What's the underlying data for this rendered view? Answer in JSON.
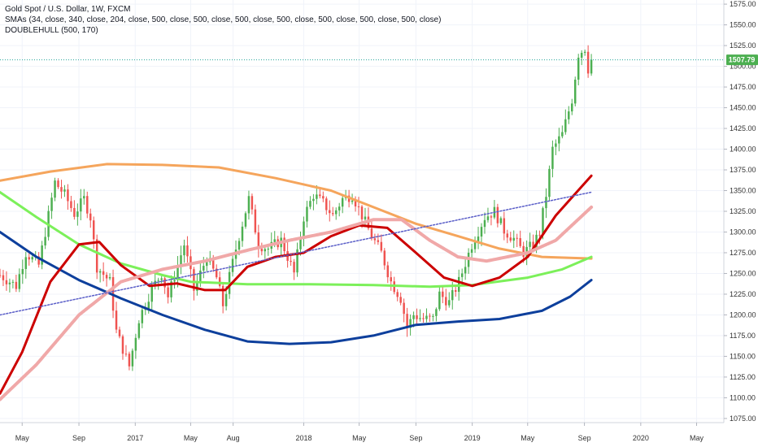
{
  "header": {
    "title": "Gold Spot / U.S. Dollar, 1W, FXCM",
    "indicator_sma": "SMAs (34, close, 340, close, 204, close, 500, close, 500, close, 500, close, 500, close, 500, close, 500, close, 500, close)",
    "indicator_hull": "DOUBLEHULL (500, 170)"
  },
  "colors": {
    "up": "#4caf50",
    "down": "#ef5350",
    "price_line": "#26a69a",
    "price_tag": "#4caf50",
    "sma_orange": "#f5a55c",
    "sma_green": "#7cf05a",
    "sma_blue": "#0d3f9c",
    "hull_red": "#cc0000",
    "hull_pink": "#f0a8a8",
    "trend_dotted": "#5a5ec8"
  },
  "chart_data": {
    "type": "candlestick",
    "title": "Gold Spot / U.S. Dollar, 1W, FXCM",
    "last_price": "1507.79",
    "last_price_value": 1507.79,
    "ylim": [
      1070,
      1580
    ],
    "y_ticks": [
      "1575.00",
      "1550.00",
      "1525.00",
      "1500.00",
      "1475.00",
      "1450.00",
      "1425.00",
      "1400.00",
      "1375.00",
      "1350.00",
      "1325.00",
      "1300.00",
      "1275.00",
      "1250.00",
      "1225.00",
      "1200.00",
      "1175.00",
      "1150.00",
      "1125.00",
      "1100.00",
      "1075.00"
    ],
    "y_tick_values": [
      1575,
      1550,
      1525,
      1500,
      1475,
      1450,
      1425,
      1400,
      1375,
      1350,
      1325,
      1300,
      1275,
      1250,
      1225,
      1200,
      1175,
      1150,
      1125,
      1100,
      1075
    ],
    "x_range": [
      "2016-03-14",
      "2020-06-29"
    ],
    "x_ticks": [
      {
        "label": "May",
        "date": "2016-05-01"
      },
      {
        "label": "Sep",
        "date": "2016-09-01"
      },
      {
        "label": "2017",
        "date": "2017-01-01"
      },
      {
        "label": "May",
        "date": "2017-05-01"
      },
      {
        "label": "Aug",
        "date": "2017-08-01"
      },
      {
        "label": "2018",
        "date": "2018-01-01"
      },
      {
        "label": "May",
        "date": "2018-05-01"
      },
      {
        "label": "Sep",
        "date": "2018-09-01"
      },
      {
        "label": "2019",
        "date": "2019-01-01"
      },
      {
        "label": "May",
        "date": "2019-05-01"
      },
      {
        "label": "Sep",
        "date": "2019-09-01"
      },
      {
        "label": "2020",
        "date": "2020-01-01"
      },
      {
        "label": "May",
        "date": "2020-05-01"
      }
    ],
    "price_anchors": [
      [
        "2016-03-14",
        1248
      ],
      [
        "2016-04-18",
        1235
      ],
      [
        "2016-05-09",
        1275
      ],
      [
        "2016-06-06",
        1260
      ],
      [
        "2016-06-27",
        1320
      ],
      [
        "2016-07-11",
        1360
      ],
      [
        "2016-08-01",
        1345
      ],
      [
        "2016-08-22",
        1322
      ],
      [
        "2016-09-12",
        1340
      ],
      [
        "2016-09-26",
        1318
      ],
      [
        "2016-10-10",
        1258
      ],
      [
        "2016-11-07",
        1240
      ],
      [
        "2016-11-21",
        1180
      ],
      [
        "2016-12-19",
        1138
      ],
      [
        "2017-01-09",
        1195
      ],
      [
        "2017-02-06",
        1232
      ],
      [
        "2017-02-27",
        1250
      ],
      [
        "2017-03-13",
        1222
      ],
      [
        "2017-04-03",
        1260
      ],
      [
        "2017-04-17",
        1285
      ],
      [
        "2017-05-08",
        1230
      ],
      [
        "2017-06-05",
        1270
      ],
      [
        "2017-06-26",
        1245
      ],
      [
        "2017-07-10",
        1212
      ],
      [
        "2017-08-07",
        1280
      ],
      [
        "2017-09-04",
        1340
      ],
      [
        "2017-09-25",
        1285
      ],
      [
        "2017-10-16",
        1280
      ],
      [
        "2017-11-13",
        1290
      ],
      [
        "2017-12-11",
        1250
      ],
      [
        "2018-01-01",
        1318
      ],
      [
        "2018-01-22",
        1345
      ],
      [
        "2018-02-12",
        1335
      ],
      [
        "2018-03-05",
        1320
      ],
      [
        "2018-03-26",
        1340
      ],
      [
        "2018-04-16",
        1345
      ],
      [
        "2018-05-07",
        1320
      ],
      [
        "2018-05-28",
        1295
      ],
      [
        "2018-06-18",
        1275
      ],
      [
        "2018-07-09",
        1240
      ],
      [
        "2018-07-30",
        1220
      ],
      [
        "2018-08-13",
        1185
      ],
      [
        "2018-08-27",
        1200
      ],
      [
        "2018-09-17",
        1195
      ],
      [
        "2018-10-08",
        1195
      ],
      [
        "2018-10-22",
        1225
      ],
      [
        "2018-11-12",
        1215
      ],
      [
        "2018-12-03",
        1240
      ],
      [
        "2018-12-31",
        1285
      ],
      [
        "2019-01-28",
        1318
      ],
      [
        "2019-02-18",
        1325
      ],
      [
        "2019-03-11",
        1302
      ],
      [
        "2019-04-01",
        1292
      ],
      [
        "2019-04-22",
        1275
      ],
      [
        "2019-05-13",
        1285
      ],
      [
        "2019-05-27",
        1300
      ],
      [
        "2019-06-10",
        1345
      ],
      [
        "2019-06-24",
        1400
      ],
      [
        "2019-07-15",
        1418
      ],
      [
        "2019-08-05",
        1460
      ],
      [
        "2019-08-19",
        1515
      ],
      [
        "2019-09-02",
        1522
      ],
      [
        "2019-09-09",
        1497
      ],
      [
        "2019-09-16",
        1507.79
      ]
    ],
    "series": [
      {
        "color": "#f5a55c",
        "width": 3,
        "dash": "",
        "points": [
          [
            "2016-03-14",
            1362
          ],
          [
            "2016-07-01",
            1373
          ],
          [
            "2016-11-01",
            1382
          ],
          [
            "2017-03-01",
            1381
          ],
          [
            "2017-07-01",
            1378
          ],
          [
            "2017-11-01",
            1365
          ],
          [
            "2018-03-01",
            1350
          ],
          [
            "2018-06-01",
            1330
          ],
          [
            "2018-09-01",
            1310
          ],
          [
            "2018-12-01",
            1295
          ],
          [
            "2019-03-01",
            1280
          ],
          [
            "2019-06-01",
            1270
          ],
          [
            "2019-09-16",
            1268
          ]
        ]
      },
      {
        "color": "#7cf05a",
        "width": 3,
        "dash": "",
        "points": [
          [
            "2016-03-14",
            1348
          ],
          [
            "2016-06-01",
            1318
          ],
          [
            "2016-09-01",
            1285
          ],
          [
            "2016-12-01",
            1262
          ],
          [
            "2017-03-01",
            1248
          ],
          [
            "2017-05-01",
            1240
          ],
          [
            "2017-09-01",
            1237
          ],
          [
            "2018-01-01",
            1237
          ],
          [
            "2018-06-01",
            1236
          ],
          [
            "2018-10-01",
            1234
          ],
          [
            "2019-01-01",
            1236
          ],
          [
            "2019-05-01",
            1245
          ],
          [
            "2019-07-15",
            1255
          ],
          [
            "2019-09-16",
            1270
          ]
        ]
      },
      {
        "color": "#0d3f9c",
        "width": 3,
        "dash": "",
        "points": [
          [
            "2016-03-14",
            1300
          ],
          [
            "2016-06-01",
            1270
          ],
          [
            "2016-09-01",
            1242
          ],
          [
            "2016-12-01",
            1220
          ],
          [
            "2017-03-01",
            1200
          ],
          [
            "2017-06-01",
            1182
          ],
          [
            "2017-09-01",
            1168
          ],
          [
            "2017-12-01",
            1165
          ],
          [
            "2018-03-01",
            1167
          ],
          [
            "2018-06-01",
            1175
          ],
          [
            "2018-09-01",
            1188
          ],
          [
            "2018-12-01",
            1192
          ],
          [
            "2019-03-01",
            1195
          ],
          [
            "2019-06-01",
            1205
          ],
          [
            "2019-08-01",
            1222
          ],
          [
            "2019-09-16",
            1242
          ]
        ]
      },
      {
        "color": "#cc0000",
        "width": 3,
        "dash": "",
        "points": [
          [
            "2016-03-14",
            1105
          ],
          [
            "2016-05-01",
            1155
          ],
          [
            "2016-07-01",
            1240
          ],
          [
            "2016-09-01",
            1285
          ],
          [
            "2016-10-15",
            1288
          ],
          [
            "2016-12-01",
            1260
          ],
          [
            "2017-02-01",
            1235
          ],
          [
            "2017-04-01",
            1238
          ],
          [
            "2017-06-01",
            1230
          ],
          [
            "2017-07-15",
            1230
          ],
          [
            "2017-09-01",
            1258
          ],
          [
            "2017-11-01",
            1270
          ],
          [
            "2018-01-01",
            1275
          ],
          [
            "2018-03-01",
            1295
          ],
          [
            "2018-05-01",
            1308
          ],
          [
            "2018-07-01",
            1305
          ],
          [
            "2018-09-01",
            1275
          ],
          [
            "2018-11-01",
            1245
          ],
          [
            "2019-01-01",
            1235
          ],
          [
            "2019-03-01",
            1245
          ],
          [
            "2019-05-01",
            1270
          ],
          [
            "2019-07-01",
            1320
          ],
          [
            "2019-09-16",
            1368
          ]
        ]
      },
      {
        "color": "#f0a8a8",
        "width": 4,
        "dash": "3 1",
        "points": [
          [
            "2016-03-14",
            1098
          ],
          [
            "2016-06-01",
            1140
          ],
          [
            "2016-09-01",
            1200
          ],
          [
            "2016-12-01",
            1240
          ],
          [
            "2017-03-01",
            1255
          ],
          [
            "2017-06-01",
            1265
          ],
          [
            "2017-09-01",
            1278
          ],
          [
            "2017-12-01",
            1290
          ],
          [
            "2018-03-01",
            1300
          ],
          [
            "2018-06-01",
            1315
          ],
          [
            "2018-08-01",
            1315
          ],
          [
            "2018-10-01",
            1290
          ],
          [
            "2018-12-01",
            1270
          ],
          [
            "2019-02-01",
            1265
          ],
          [
            "2019-05-01",
            1275
          ],
          [
            "2019-07-01",
            1290
          ],
          [
            "2019-09-16",
            1330
          ]
        ]
      },
      {
        "color": "#5a5ec8",
        "width": 1.5,
        "dash": "2 2",
        "points": [
          [
            "2016-03-14",
            1200
          ],
          [
            "2019-09-16",
            1348
          ]
        ]
      }
    ]
  }
}
